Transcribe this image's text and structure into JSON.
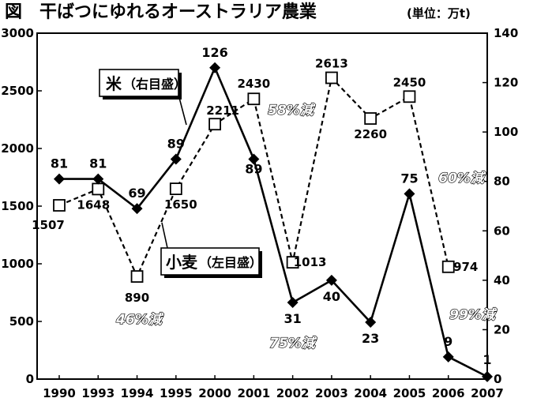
{
  "title": "図　干ばつにゆれるオーストラリア農業",
  "unit": "(単位：万t)",
  "chart_data": {
    "type": "line",
    "categories": [
      "1990",
      "1993",
      "1994",
      "1995",
      "2000",
      "2001",
      "2002",
      "2003",
      "2004",
      "2005",
      "2006",
      "2007"
    ],
    "y_left_ticks": [
      "0",
      "500",
      "1000",
      "1500",
      "2000",
      "2500",
      "3000"
    ],
    "y_right_ticks": [
      "0",
      "20",
      "40",
      "60",
      "80",
      "100",
      "120",
      "140"
    ],
    "ylim_left": [
      0,
      3000
    ],
    "ylim_right": [
      0,
      140
    ],
    "series": [
      {
        "name": "米（右目盛）",
        "axis": "right",
        "style": "solid-diamond",
        "values": [
          81,
          81,
          69,
          89,
          126,
          89,
          31,
          40,
          23,
          75,
          9,
          1
        ],
        "labels": [
          "81",
          "81",
          "69",
          "89",
          "126",
          "89",
          "31",
          "40",
          "23",
          "75",
          "9",
          "1"
        ]
      },
      {
        "name": "小麦（左目盛）",
        "axis": "left",
        "style": "dashed-square",
        "values": [
          1507,
          1648,
          890,
          1650,
          2211,
          2430,
          1013,
          2613,
          2260,
          2450,
          974,
          null
        ],
        "labels": [
          "1507",
          "1648",
          "890",
          "1650",
          "2211",
          "2430",
          "1013",
          "2613",
          "2260",
          "2450",
          "974",
          ""
        ]
      }
    ],
    "legend": {
      "rice_main": "米",
      "rice_sub": "（右目盛）",
      "wheat_main": "小麦",
      "wheat_sub": "（左目盛）"
    },
    "annotations": [
      "58%減",
      "46%減",
      "75%減",
      "60%減",
      "99%減"
    ],
    "colors": {
      "line": "#000000",
      "marker_fill_wheat": "#ffffff",
      "marker_fill_rice": "#000000"
    }
  }
}
